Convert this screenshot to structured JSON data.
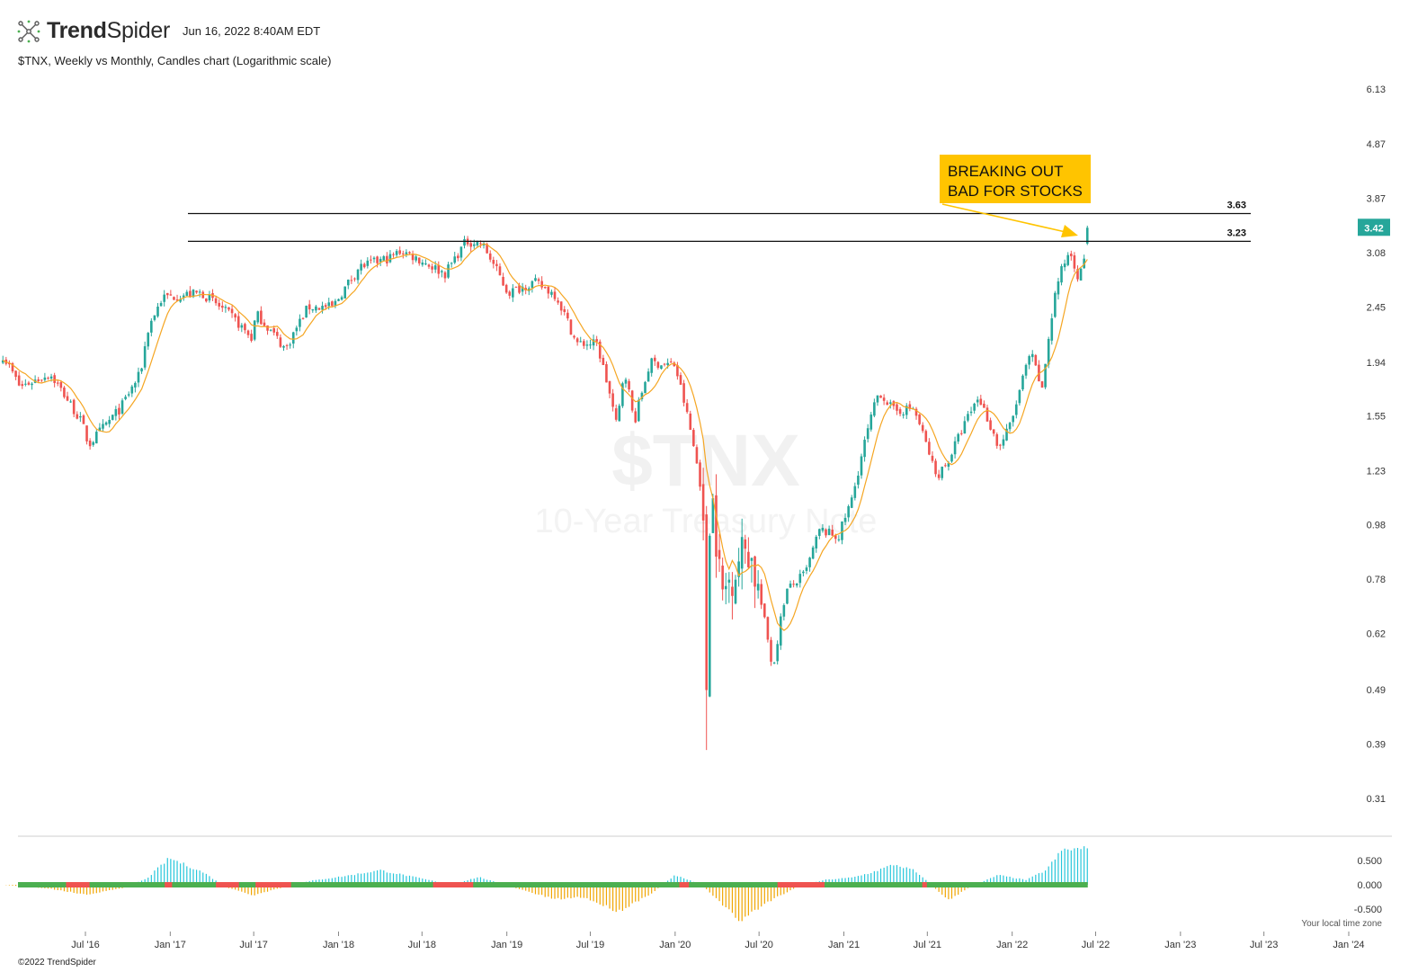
{
  "header": {
    "brand_bold": "Trend",
    "brand_light": "Spider",
    "timestamp": "Jun 16, 2022 8:40AM EDT",
    "subtitle": "$TNX, Weekly vs Monthly, Candles chart (Logarithmic scale)"
  },
  "footer": {
    "copyright": "©2022 TrendSpider",
    "local_time": "Your local time zone"
  },
  "colors": {
    "up": "#26a69a",
    "down": "#ef5350",
    "ma": "#f5a623",
    "osc_pos": "#26c6da",
    "osc_neg": "#f0a500",
    "osc_zero_up": "#4caf50",
    "osc_zero_down": "#ef5350",
    "callout_bg": "#ffc400"
  },
  "chart_data": {
    "type": "candlestick",
    "scale": "log",
    "watermark": {
      "symbol": "$TNX",
      "name": "10-Year Treasury Note"
    },
    "y_ticks": [
      "6.13",
      "4.87",
      "3.87",
      "3.08",
      "2.45",
      "1.94",
      "1.55",
      "1.23",
      "0.98",
      "0.78",
      "0.62",
      "0.49",
      "0.39",
      "0.31"
    ],
    "x_ticks": [
      "Jul '16",
      "Jan '17",
      "Jul '17",
      "Jan '18",
      "Jul '18",
      "Jan '19",
      "Jul '19",
      "Jan '20",
      "Jul '20",
      "Jan '21",
      "Jul '21",
      "Jan '22",
      "Jul '22",
      "Jan '23",
      "Jul '23",
      "Jan '24"
    ],
    "last_price": "3.42",
    "levels": [
      {
        "value": "3.63"
      },
      {
        "value": "3.23"
      }
    ],
    "annotation": {
      "line1": "BREAKING OUT",
      "line2": "BAD FOR STOCKS"
    },
    "oscillator_ticks": [
      "0.500",
      "0.000",
      "-0.500"
    ],
    "close_anchors": [
      [
        "2016-01-04",
        2.0
      ],
      [
        "2016-02-10",
        1.75
      ],
      [
        "2016-04-15",
        1.85
      ],
      [
        "2016-06-24",
        1.5
      ],
      [
        "2016-07-08",
        1.37
      ],
      [
        "2016-09-15",
        1.6
      ],
      [
        "2016-10-28",
        1.85
      ],
      [
        "2016-11-15",
        2.25
      ],
      [
        "2016-12-15",
        2.55
      ],
      [
        "2017-03-10",
        2.6
      ],
      [
        "2017-05-15",
        2.35
      ],
      [
        "2017-06-26",
        2.15
      ],
      [
        "2017-07-07",
        2.38
      ],
      [
        "2017-09-08",
        2.05
      ],
      [
        "2017-10-27",
        2.45
      ],
      [
        "2017-12-20",
        2.45
      ],
      [
        "2018-02-15",
        2.9
      ],
      [
        "2018-04-25",
        3.02
      ],
      [
        "2018-05-17",
        3.11
      ],
      [
        "2018-08-20",
        2.82
      ],
      [
        "2018-10-05",
        3.23
      ],
      [
        "2018-11-08",
        3.2
      ],
      [
        "2019-01-03",
        2.6
      ],
      [
        "2019-03-01",
        2.72
      ],
      [
        "2019-04-17",
        2.58
      ],
      [
        "2019-06-01",
        2.1
      ],
      [
        "2019-07-15",
        2.1
      ],
      [
        "2019-08-28",
        1.47
      ],
      [
        "2019-09-13",
        1.9
      ],
      [
        "2019-10-04",
        1.5
      ],
      [
        "2019-11-08",
        1.94
      ],
      [
        "2019-12-31",
        1.92
      ],
      [
        "2020-01-31",
        1.5
      ],
      [
        "2020-02-28",
        1.12
      ],
      [
        "2020-03-09",
        0.5
      ],
      [
        "2020-03-18",
        1.18
      ],
      [
        "2020-04-10",
        0.72
      ],
      [
        "2020-06-05",
        0.91
      ],
      [
        "2020-07-31",
        0.53
      ],
      [
        "2020-08-28",
        0.74
      ],
      [
        "2020-10-10",
        0.8
      ],
      [
        "2020-11-10",
        0.96
      ],
      [
        "2020-12-20",
        0.93
      ],
      [
        "2021-01-20",
        1.1
      ],
      [
        "2021-03-18",
        1.72
      ],
      [
        "2021-04-20",
        1.58
      ],
      [
        "2021-06-01",
        1.6
      ],
      [
        "2021-07-20",
        1.2
      ],
      [
        "2021-08-15",
        1.28
      ],
      [
        "2021-10-20",
        1.68
      ],
      [
        "2021-12-03",
        1.35
      ],
      [
        "2021-12-31",
        1.51
      ],
      [
        "2022-02-10",
        2.02
      ],
      [
        "2022-03-07",
        1.72
      ],
      [
        "2022-04-08",
        2.7
      ],
      [
        "2022-05-06",
        3.12
      ],
      [
        "2022-05-27",
        2.74
      ],
      [
        "2022-06-10",
        3.16
      ],
      [
        "2022-06-14",
        3.42
      ]
    ],
    "oscillator_anchors": [
      [
        "2016-01-04",
        0.0
      ],
      [
        "2016-04-15",
        -0.08
      ],
      [
        "2016-07-01",
        -0.2
      ],
      [
        "2016-09-15",
        -0.08
      ],
      [
        "2016-11-10",
        0.12
      ],
      [
        "2016-12-30",
        0.55
      ],
      [
        "2017-03-15",
        0.25
      ],
      [
        "2017-05-01",
        -0.05
      ],
      [
        "2017-07-01",
        -0.22
      ],
      [
        "2017-08-15",
        -0.1
      ],
      [
        "2017-11-01",
        0.08
      ],
      [
        "2018-01-15",
        0.18
      ],
      [
        "2018-04-01",
        0.3
      ],
      [
        "2018-07-15",
        0.1
      ],
      [
        "2018-09-01",
        0.0
      ],
      [
        "2018-11-01",
        0.16
      ],
      [
        "2018-12-20",
        0.02
      ],
      [
        "2019-02-01",
        -0.1
      ],
      [
        "2019-04-15",
        -0.3
      ],
      [
        "2019-06-15",
        -0.25
      ],
      [
        "2019-08-31",
        -0.55
      ],
      [
        "2019-11-15",
        -0.15
      ],
      [
        "2019-12-31",
        0.2
      ],
      [
        "2020-02-01",
        0.1
      ],
      [
        "2020-03-05",
        -0.05
      ],
      [
        "2020-05-20",
        -0.75
      ],
      [
        "2020-07-20",
        -0.35
      ],
      [
        "2020-09-20",
        -0.05
      ],
      [
        "2020-11-20",
        0.1
      ],
      [
        "2021-01-20",
        0.15
      ],
      [
        "2021-03-01",
        0.25
      ],
      [
        "2021-04-20",
        0.42
      ],
      [
        "2021-06-01",
        0.3
      ],
      [
        "2021-07-10",
        0.0
      ],
      [
        "2021-08-15",
        -0.32
      ],
      [
        "2021-10-01",
        -0.05
      ],
      [
        "2021-12-01",
        0.2
      ],
      [
        "2022-02-01",
        0.1
      ],
      [
        "2022-03-15",
        0.3
      ],
      [
        "2022-04-20",
        0.72
      ],
      [
        "2022-06-14",
        0.75
      ]
    ]
  }
}
